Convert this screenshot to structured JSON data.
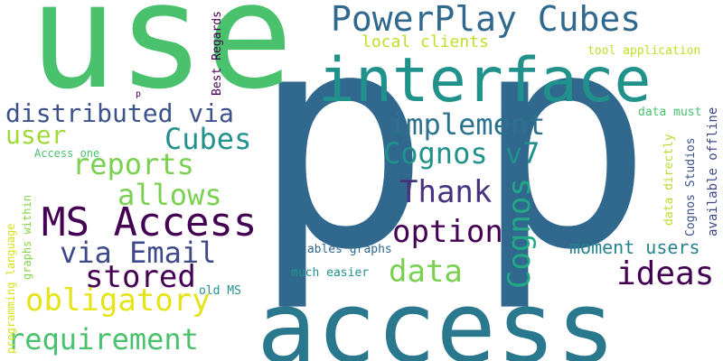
{
  "words": [
    {
      "text": "p",
      "color": "#31688e"
    },
    {
      "text": "p",
      "color": "#31688e"
    },
    {
      "text": "use",
      "color": "#4ac16d"
    },
    {
      "text": "access",
      "color": "#2a788e"
    },
    {
      "text": "interface",
      "color": "#21918c"
    },
    {
      "text": "PowerPlay Cubes",
      "color": "#31688e"
    },
    {
      "text": "MS Access",
      "color": "#440154"
    },
    {
      "text": "distributed via",
      "color": "#3b528b"
    },
    {
      "text": "implement",
      "color": "#2c728e"
    },
    {
      "text": "user",
      "color": "#a0da39"
    },
    {
      "text": "Cubes",
      "color": "#21918c"
    },
    {
      "text": "reports",
      "color": "#7ad151"
    },
    {
      "text": "Cognos v7",
      "color": "#21918c"
    },
    {
      "text": "allows",
      "color": "#7ad151"
    },
    {
      "text": "Thank",
      "color": "#46327e"
    },
    {
      "text": "Cognos",
      "color": "#22a884"
    },
    {
      "text": "option",
      "color": "#440154"
    },
    {
      "text": "via Email",
      "color": "#3e4989"
    },
    {
      "text": "stored",
      "color": "#440154"
    },
    {
      "text": "data",
      "color": "#7ad151"
    },
    {
      "text": "ideas",
      "color": "#440154"
    },
    {
      "text": "obligatory",
      "color": "#e5e419"
    },
    {
      "text": "requirement",
      "color": "#4ac16d"
    },
    {
      "text": "moment users",
      "color": "#26828e"
    },
    {
      "text": "local clients",
      "color": "#bddf26"
    },
    {
      "text": "tool application",
      "color": "#bddf26"
    },
    {
      "text": "Best Regards",
      "color": "#440154"
    },
    {
      "text": "data must",
      "color": "#4ac16d"
    },
    {
      "text": "available offline",
      "color": "#3e4989"
    },
    {
      "text": "Cognos Studios",
      "color": "#3b528b"
    },
    {
      "text": "data directly",
      "color": "#b5de2b"
    },
    {
      "text": "Access one",
      "color": "#4ac16d"
    },
    {
      "text": "programming language",
      "color": "#d8e219"
    },
    {
      "text": "graphs within",
      "color": "#86d549"
    },
    {
      "text": "tables graphs",
      "color": "#31688e"
    },
    {
      "text": "much easier",
      "color": "#21918c"
    },
    {
      "text": "old MS",
      "color": "#21918c"
    },
    {
      "text": "p",
      "color": "#440154"
    }
  ]
}
